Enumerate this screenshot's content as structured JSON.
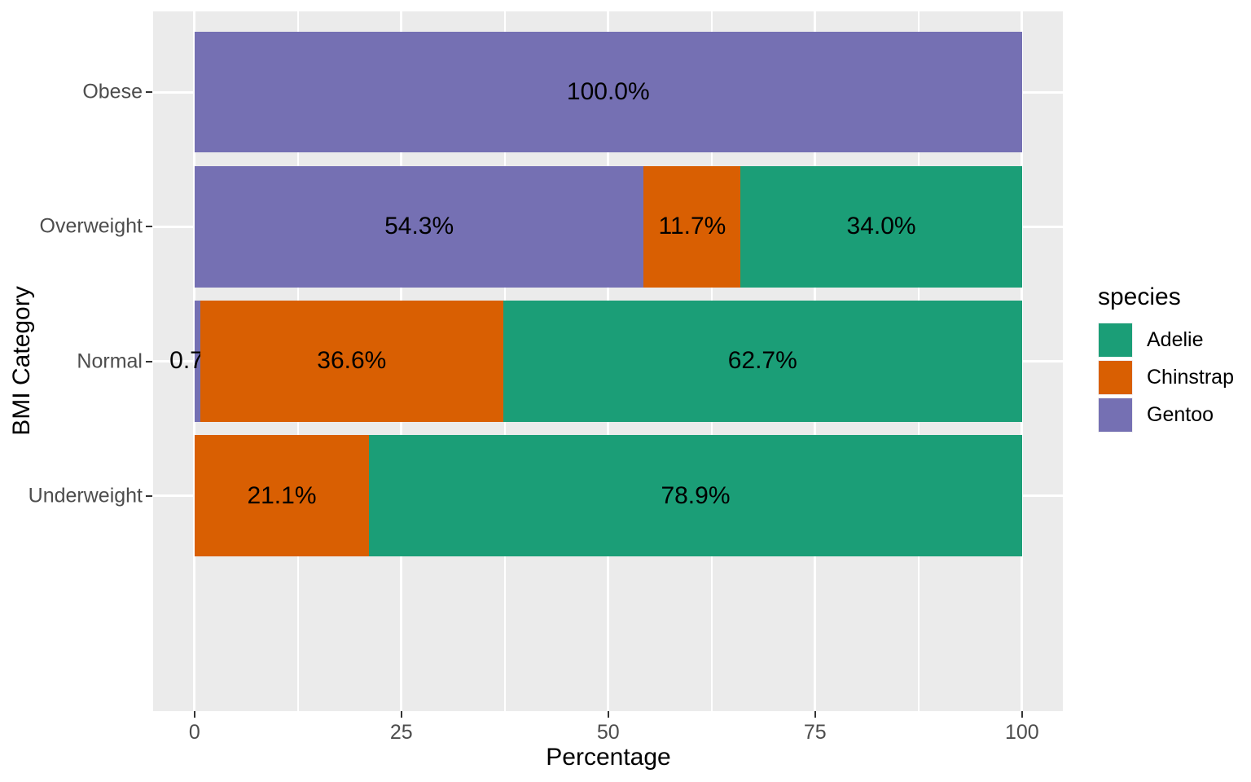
{
  "chart_data": {
    "type": "bar",
    "orientation": "horizontal",
    "stacked": true,
    "xlabel": "Percentage",
    "ylabel": "BMI Category",
    "xlim": [
      0,
      100
    ],
    "x_major_ticks": [
      0,
      25,
      50,
      75,
      100
    ],
    "x_tick_labels": [
      "0",
      "25",
      "50",
      "75",
      "100"
    ],
    "x_minor_ticks": [
      12.5,
      37.5,
      62.5,
      87.5
    ],
    "categories": [
      "Obese",
      "Overweight",
      "Normal",
      "Underweight"
    ],
    "grid": true,
    "legend": {
      "title": "species",
      "position": "right",
      "entries": [
        {
          "label": "Adelie",
          "color": "#1B9E77"
        },
        {
          "label": "Chinstrap",
          "color": "#D95F02"
        },
        {
          "label": "Gentoo",
          "color": "#7570B3"
        }
      ]
    },
    "colors": {
      "Adelie": "#1B9E77",
      "Chinstrap": "#D95F02",
      "Gentoo": "#7570B3"
    },
    "rows": [
      {
        "category": "Obese",
        "segments": [
          {
            "species": "Gentoo",
            "value": 100.0,
            "label": "100.0%"
          }
        ]
      },
      {
        "category": "Overweight",
        "segments": [
          {
            "species": "Gentoo",
            "value": 54.3,
            "label": "54.3%"
          },
          {
            "species": "Chinstrap",
            "value": 11.7,
            "label": "11.7%"
          },
          {
            "species": "Adelie",
            "value": 34.0,
            "label": "34.0%"
          }
        ]
      },
      {
        "category": "Normal",
        "segments": [
          {
            "species": "Gentoo",
            "value": 0.7,
            "label": "0.7%"
          },
          {
            "species": "Chinstrap",
            "value": 36.6,
            "label": "36.6%"
          },
          {
            "species": "Adelie",
            "value": 62.7,
            "label": "62.7%"
          }
        ]
      },
      {
        "category": "Underweight",
        "segments": [
          {
            "species": "Chinstrap",
            "value": 21.1,
            "label": "21.1%"
          },
          {
            "species": "Adelie",
            "value": 78.9,
            "label": "78.9%"
          }
        ]
      }
    ],
    "style": {
      "panel_bg": "#EBEBEB",
      "grid_color": "#FFFFFF",
      "tick_text_color": "#4D4D4D",
      "tick_mark_color": "#333333",
      "label_text_color": "#000000"
    }
  }
}
